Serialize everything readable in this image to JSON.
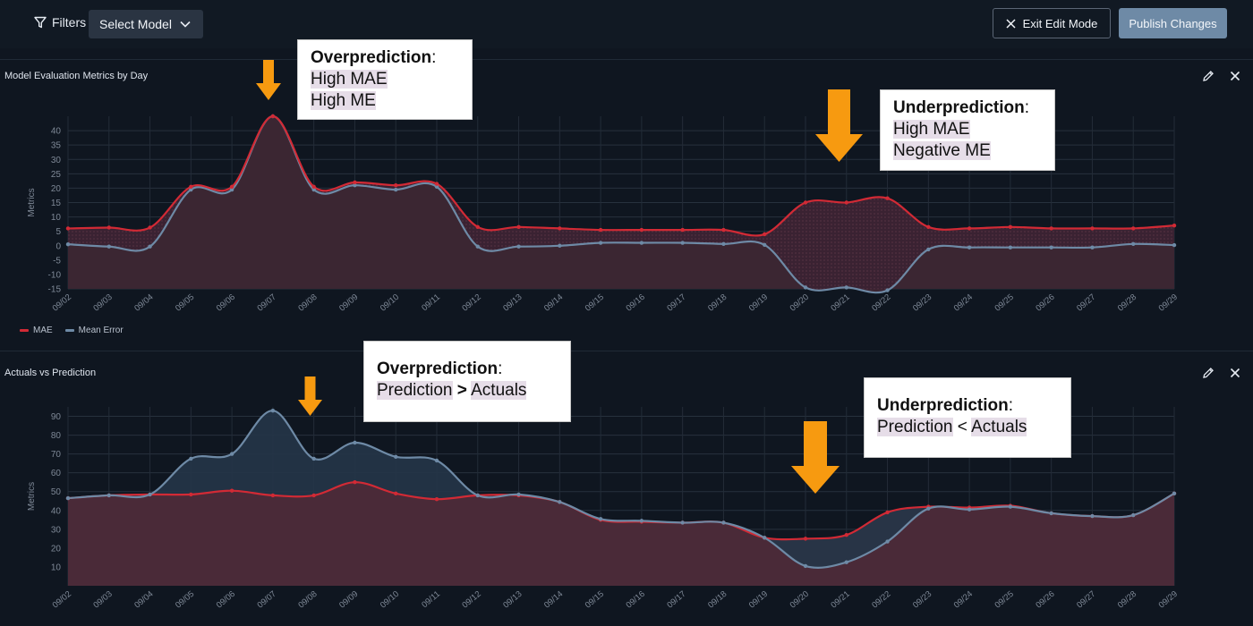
{
  "toolbar": {
    "filters_label": "Filters",
    "select_model_label": "Select Model",
    "exit_label": "Exit Edit Mode",
    "publish_label": "Publish Changes"
  },
  "colors": {
    "mae": "#d22a35",
    "mean_error": "#6e8aa6",
    "publish": "#6e8aa6",
    "arrow": "#f79a10"
  },
  "panels": {
    "metrics": {
      "title": "Model Evaluation Metrics by Day",
      "ylabel": "Metrics"
    },
    "actuals": {
      "title": "Actuals vs Prediction",
      "ylabel": "Metrics"
    }
  },
  "legend": {
    "mae": "MAE",
    "mean_error": "Mean Error"
  },
  "callouts": {
    "over1": {
      "title": "Overprediction",
      "colon": ":",
      "line1": "High MAE",
      "line2": "High ME"
    },
    "under1": {
      "title": "Underprediction",
      "colon": ":",
      "line1": "High MAE",
      "line2": "Negative ME"
    },
    "over2": {
      "title": "Overprediction",
      "colon": ":",
      "a": "Prediction",
      "op": ">",
      "b": "Actuals"
    },
    "under2": {
      "title": "Underprediction",
      "colon": ":",
      "a": "Prediction",
      "op": "<",
      "b": "Actuals"
    }
  },
  "chart_data": [
    {
      "type": "area",
      "title": "Model Evaluation Metrics by Day",
      "ylabel": "Metrics",
      "ylim": [
        -15,
        45
      ],
      "yticks": [
        -15,
        -10,
        -5,
        0,
        5,
        10,
        15,
        20,
        25,
        30,
        35,
        40
      ],
      "categories": [
        "09/02",
        "09/03",
        "09/04",
        "09/05",
        "09/06",
        "09/07",
        "09/08",
        "09/09",
        "09/10",
        "09/11",
        "09/12",
        "09/13",
        "09/14",
        "09/15",
        "09/16",
        "09/17",
        "09/18",
        "09/19",
        "09/20",
        "09/21",
        "09/22",
        "09/23",
        "09/24",
        "09/25",
        "09/26",
        "09/27",
        "09/28",
        "09/29"
      ],
      "series": [
        {
          "name": "MAE",
          "values": [
            6,
            6.3,
            6.3,
            20.5,
            20.5,
            45,
            20.5,
            22,
            21,
            21.5,
            6.5,
            6.5,
            6,
            5.5,
            5.5,
            5.5,
            5.5,
            4,
            15,
            15,
            16.5,
            6.5,
            6,
            6.5,
            6,
            6,
            6,
            7
          ]
        },
        {
          "name": "Mean Error",
          "values": [
            0.5,
            -0.3,
            -0.3,
            19.5,
            19.5,
            45,
            19.5,
            21,
            19.5,
            20.5,
            -0.3,
            -0.3,
            0,
            1,
            1,
            1,
            0.6,
            0.3,
            -14.5,
            -14.5,
            -15.5,
            -1.3,
            -0.6,
            -0.6,
            -0.6,
            -0.6,
            0.6,
            0.2
          ]
        }
      ],
      "grid": true,
      "legend": "bottom-left"
    },
    {
      "type": "area",
      "title": "Actuals vs Prediction",
      "ylabel": "Metrics",
      "ylim": [
        0,
        95
      ],
      "yticks": [
        10,
        20,
        30,
        40,
        50,
        60,
        70,
        80,
        90
      ],
      "categories": [
        "09/02",
        "09/03",
        "09/04",
        "09/05",
        "09/06",
        "09/07",
        "09/08",
        "09/09",
        "09/10",
        "09/11",
        "09/12",
        "09/13",
        "09/14",
        "09/15",
        "09/16",
        "09/17",
        "09/18",
        "09/19",
        "09/20",
        "09/21",
        "09/22",
        "09/23",
        "09/24",
        "09/25",
        "09/26",
        "09/27",
        "09/28",
        "09/29"
      ],
      "series": [
        {
          "values": [
            46.5,
            48,
            48.5,
            48.5,
            50.5,
            48,
            48,
            55,
            49,
            46,
            48,
            48,
            44.5,
            35,
            34,
            33.5,
            33.5,
            25.5,
            25,
            27,
            39,
            42,
            41.5,
            42.5,
            38.5,
            37,
            37.5,
            49
          ]
        },
        {
          "values": [
            46.5,
            48,
            48.5,
            67.5,
            70,
            93,
            67.5,
            76,
            68.5,
            66.5,
            48,
            48.5,
            44.5,
            35.5,
            34.5,
            33.5,
            33.5,
            25.5,
            10.5,
            12.5,
            23.5,
            41,
            40.5,
            42,
            38.5,
            37,
            37.5,
            49
          ]
        }
      ],
      "grid": true
    }
  ]
}
